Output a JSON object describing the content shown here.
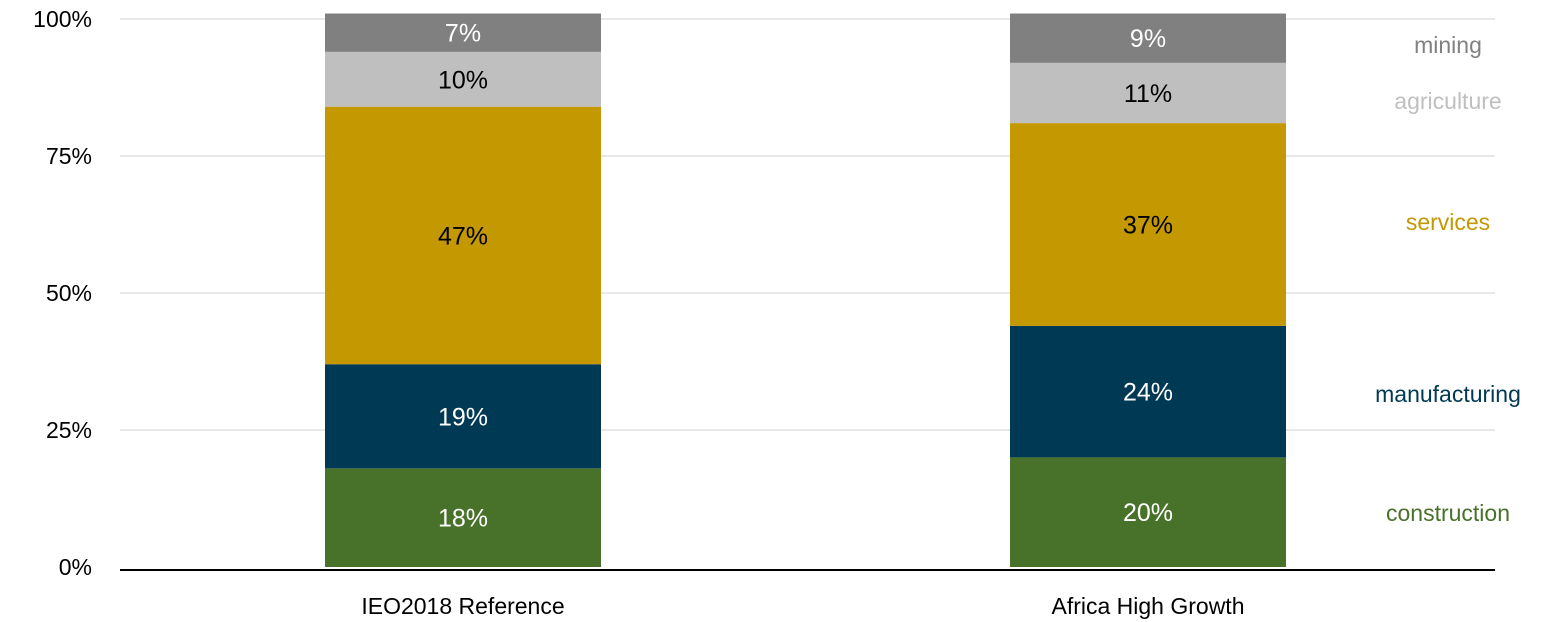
{
  "chart_data": {
    "type": "bar",
    "stacked": true,
    "categories": [
      "IEO2018 Reference",
      "Africa High Growth"
    ],
    "series": [
      {
        "name": "construction",
        "values": [
          18,
          20
        ],
        "color": "#48712a",
        "label_color": "#ffffff"
      },
      {
        "name": "manufacturing",
        "values": [
          19,
          24
        ],
        "color": "#003953",
        "label_color": "#ffffff"
      },
      {
        "name": "services",
        "values": [
          47,
          37
        ],
        "color": "#c39800",
        "label_color": "#000000"
      },
      {
        "name": "agriculture",
        "values": [
          10,
          11
        ],
        "color": "#bfbfbf",
        "label_color": "#000000"
      },
      {
        "name": "mining",
        "values": [
          7,
          9
        ],
        "color": "#808080",
        "label_color": "#ffffff"
      }
    ],
    "data_labels": [
      [
        "18%",
        "20%"
      ],
      [
        "19%",
        "24%"
      ],
      [
        "47%",
        "37%"
      ],
      [
        "10%",
        "11%"
      ],
      [
        "7%",
        "9%"
      ]
    ],
    "y_ticks": [
      "0%",
      "25%",
      "50%",
      "75%",
      "100%"
    ],
    "ylim": [
      0,
      100
    ],
    "grid": true,
    "legend": "right, inline labels",
    "title": "",
    "xlabel": "",
    "ylabel": ""
  }
}
